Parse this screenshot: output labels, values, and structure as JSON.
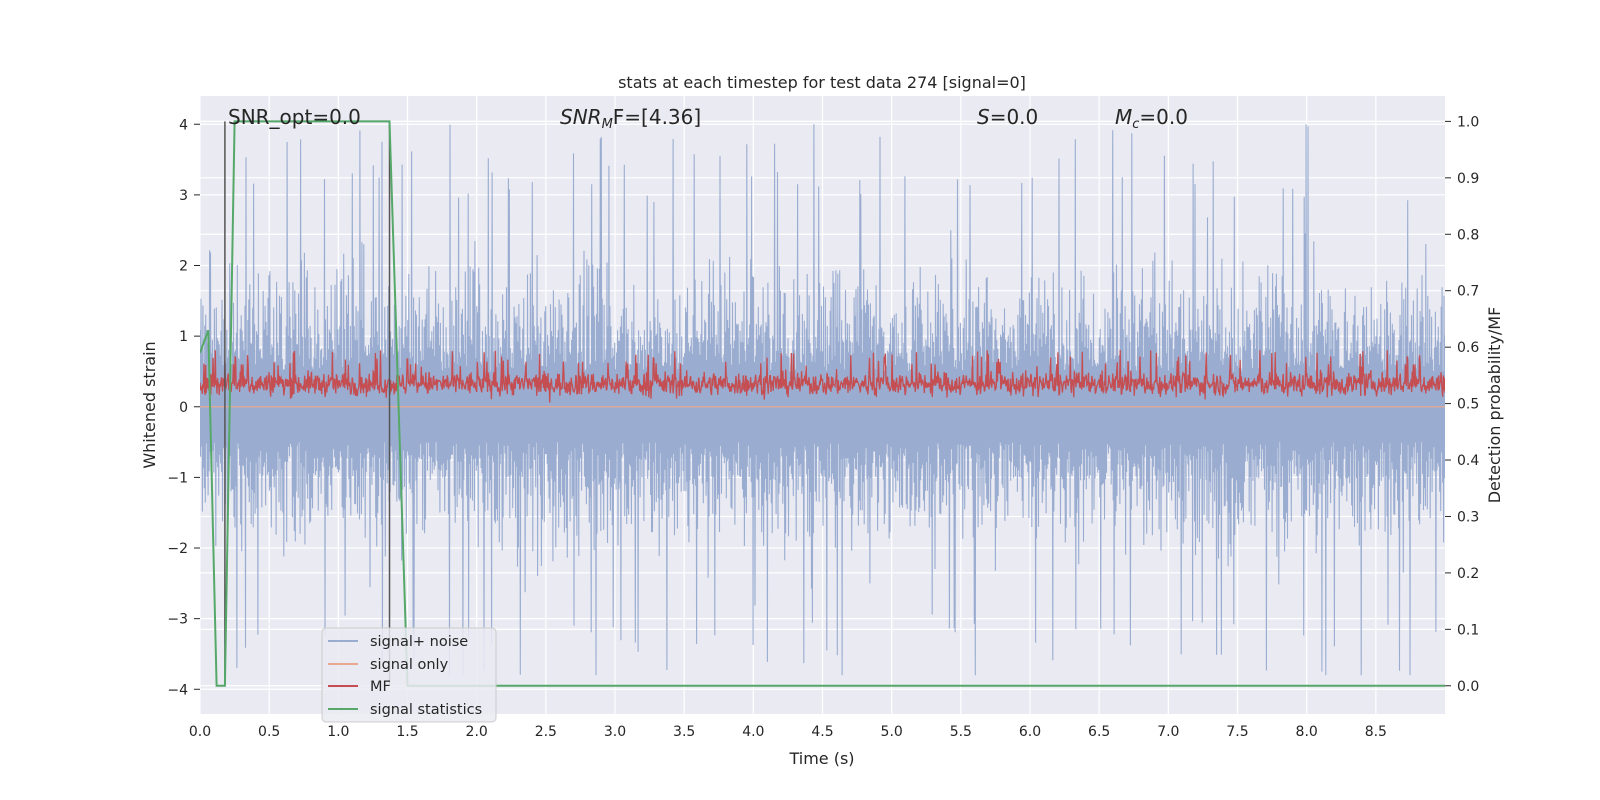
{
  "chart_data": {
    "type": "line",
    "title": "stats at each timestep for test data 274 [signal=0]",
    "xlabel": "Time (s)",
    "ylabel_left": "Whitened strain",
    "ylabel_right": "Detection probability/MF",
    "xlim": [
      0.0,
      9.0
    ],
    "ylim_left": [
      -4.35,
      4.4
    ],
    "ylim_right": [
      -0.05,
      1.045
    ],
    "x_ticks": [
      "0.0",
      "0.5",
      "1.0",
      "1.5",
      "2.0",
      "2.5",
      "3.0",
      "3.5",
      "4.0",
      "4.5",
      "5.0",
      "5.5",
      "6.0",
      "6.5",
      "7.0",
      "7.5",
      "8.0",
      "8.5"
    ],
    "y_ticks_left": [
      "−4",
      "−3",
      "−2",
      "−1",
      "0",
      "1",
      "2",
      "3",
      "4"
    ],
    "y_ticks_right": [
      "0.0",
      "0.1",
      "0.2",
      "0.3",
      "0.4",
      "0.5",
      "0.6",
      "0.7",
      "0.8",
      "0.9",
      "1.0"
    ],
    "grid": true,
    "legend_position": "lower-left",
    "annotations": {
      "snr_opt": "SNR_opt=0.0",
      "snr_mf_name": "SNR",
      "snr_mf_sub": "M",
      "snr_mf_rest": "F=[4.36]",
      "s_name": "S",
      "s_rest": "=0.0",
      "mc_name": "M",
      "mc_sub": "c",
      "mc_rest": "=0.0"
    },
    "vertical_lines_x": [
      0.18,
      1.37
    ],
    "series": [
      {
        "name": "signal+ noise",
        "axis": "left",
        "color": "#9aadd1",
        "style": "noise",
        "amplitude_typical": 1.7,
        "peak_min": -3.8,
        "peak_max": 4.0
      },
      {
        "name": "signal only",
        "axis": "left",
        "color": "#e8a98f",
        "constant": 0.0
      },
      {
        "name": "MF",
        "axis": "right",
        "color": "#c44e52",
        "style": "noise",
        "center": 0.535,
        "range": [
          0.5,
          0.6
        ]
      },
      {
        "name": "signal statistics",
        "axis": "right",
        "color": "#55a868",
        "x": [
          0.0,
          0.06,
          0.12,
          0.18,
          0.25,
          0.5,
          1.0,
          1.37,
          1.5,
          9.0
        ],
        "y": [
          0.59,
          0.63,
          0.0,
          0.0,
          1.0,
          1.0,
          1.0,
          1.0,
          0.0,
          0.0
        ]
      }
    ]
  }
}
